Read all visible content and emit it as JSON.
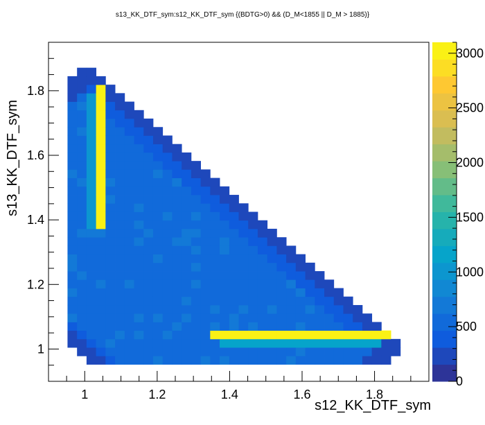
{
  "chart_data": {
    "type": "heatmap",
    "title": "s13_KK_DTF_sym:s12_KK_DTF_sym {(BDTG>0) && (D_M<1855 || D_M > 1885)}",
    "xlabel": "s12_KK_DTF_sym",
    "ylabel": "s13_KK_DTF_sym",
    "xlim": [
      0.9,
      1.95
    ],
    "ylim": [
      0.9,
      1.95
    ],
    "zlim": [
      0,
      3100
    ],
    "xticks": [
      "1",
      "1.2",
      "1.4",
      "1.6",
      "1.8"
    ],
    "yticks": [
      "1",
      "1.2",
      "1.4",
      "1.6",
      "1.8"
    ],
    "zticks": [
      "0",
      "500",
      "1000",
      "1500",
      "2000",
      "2500",
      "3000"
    ],
    "bins": {
      "nx": 40,
      "ny": 40
    },
    "colormap": "kBird (ROOT)",
    "grid": false,
    "shape": "elliptical band between s12+s13≈1.96 and s12+s13≈2.88; edge bins ≈250",
    "features": [
      {
        "where": "s12 ≈ 1.04, s13 1.37–1.80",
        "peak": 3000
      },
      {
        "where": "s13 ≈ 1.05, s12 1.36–1.84",
        "peak": 3000
      },
      {
        "where": "interior",
        "typical": 600
      }
    ]
  }
}
